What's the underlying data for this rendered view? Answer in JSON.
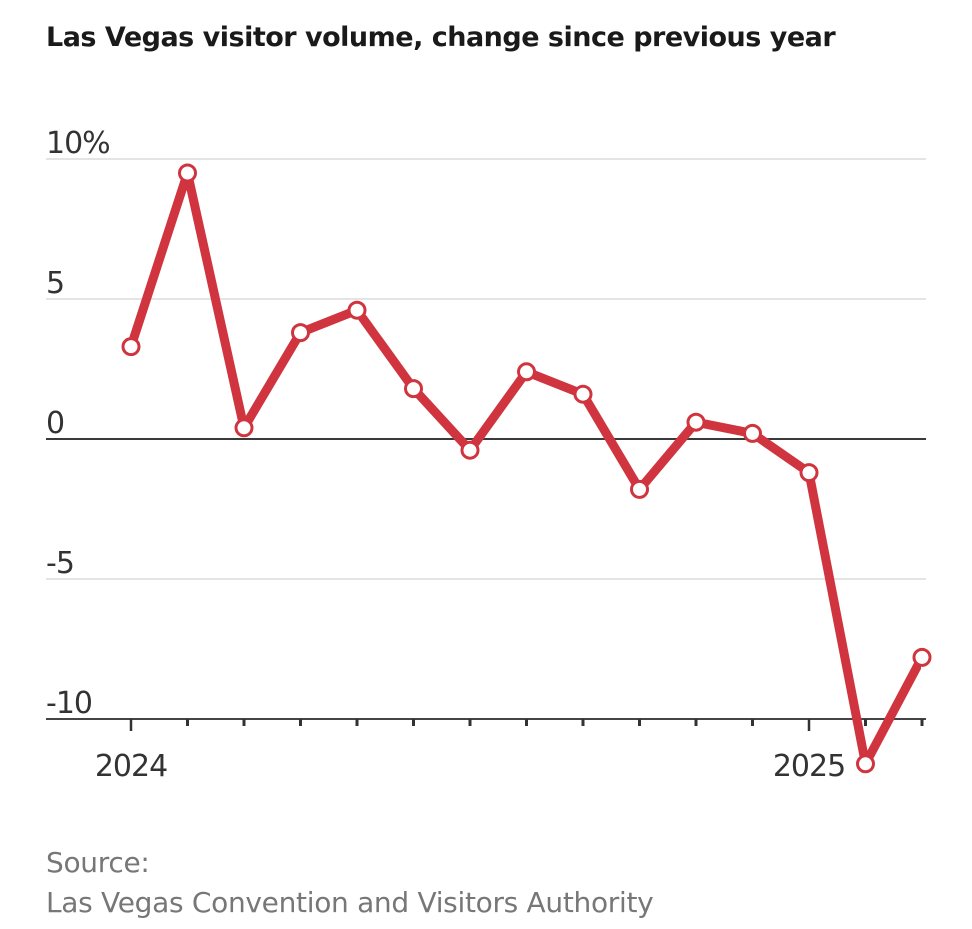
{
  "chart_data": {
    "type": "line",
    "title": "Las Vegas visitor volume, change since previous year",
    "xlabel": "",
    "ylabel": "",
    "ylim": [
      -10,
      10
    ],
    "yticks": [
      {
        "value": 10,
        "label": "10%"
      },
      {
        "value": 5,
        "label": "5"
      },
      {
        "value": 0,
        "label": "0"
      },
      {
        "value": -5,
        "label": "-5"
      },
      {
        "value": -10,
        "label": "-10"
      }
    ],
    "xtick_count": 15,
    "xtick_labels": [
      {
        "index": 0,
        "label": "2024"
      },
      {
        "index": 12,
        "label": "2025"
      }
    ],
    "series": [
      {
        "name": "Visitor volume change",
        "color": "#d0353f",
        "values": [
          3.3,
          9.5,
          0.4,
          3.8,
          4.6,
          1.8,
          -0.4,
          2.4,
          1.6,
          -1.8,
          0.6,
          0.2,
          -1.2,
          -11.6,
          -7.8
        ]
      }
    ],
    "grid": true,
    "source_label": "Source:",
    "source_name": "Las Vegas Convention and Visitors Authority"
  }
}
